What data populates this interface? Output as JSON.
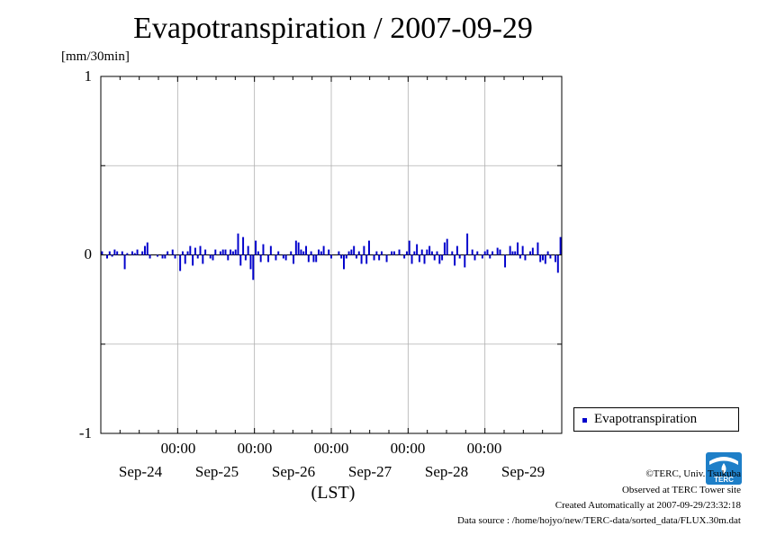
{
  "chart_data": {
    "type": "bar",
    "title": "Evapotranspiration / 2007-09-29",
    "ylabel": "[mm/30min]",
    "xlabel": "(LST)",
    "ylim": [
      -1,
      1
    ],
    "yticks": [
      "1",
      "0",
      "-1"
    ],
    "ytick_values": [
      1,
      0,
      -1
    ],
    "xticks_time": [
      "00:00",
      "00:00",
      "00:00",
      "00:00",
      "00:00"
    ],
    "xticks_date": [
      "Sep-24",
      "Sep-25",
      "Sep-26",
      "Sep-27",
      "Sep-28",
      "Sep-29"
    ],
    "days": 6,
    "grid": true,
    "legend_position": "bottom-right",
    "series": [
      {
        "name": "Evapotranspiration",
        "color": "#0000cc",
        "values": [
          0.02,
          0.0,
          -0.02,
          0.02,
          -0.01,
          0.03,
          0.02,
          0.0,
          0.02,
          -0.08,
          0.01,
          0.0,
          0.02,
          0.01,
          0.03,
          0.0,
          0.02,
          0.05,
          0.07,
          -0.02,
          0.0,
          0.0,
          -0.01,
          0.0,
          -0.02,
          -0.02,
          0.02,
          0.0,
          0.03,
          -0.02,
          0.0,
          -0.09,
          0.02,
          -0.05,
          0.02,
          0.05,
          -0.06,
          0.04,
          -0.02,
          0.05,
          -0.05,
          0.03,
          0.0,
          -0.02,
          -0.03,
          0.03,
          0.0,
          0.02,
          0.03,
          0.03,
          -0.03,
          0.03,
          0.02,
          0.03,
          0.12,
          -0.06,
          0.1,
          -0.03,
          0.05,
          -0.08,
          -0.14,
          0.08,
          0.02,
          -0.04,
          0.06,
          0.0,
          -0.04,
          0.05,
          0.0,
          -0.03,
          0.02,
          0.0,
          -0.02,
          -0.03,
          0.0,
          0.02,
          -0.05,
          0.08,
          0.07,
          0.03,
          0.02,
          0.05,
          -0.04,
          0.02,
          -0.04,
          -0.04,
          0.03,
          0.02,
          0.05,
          0.0,
          0.03,
          -0.02,
          0.0,
          0.0,
          0.02,
          -0.02,
          -0.08,
          -0.02,
          0.02,
          0.03,
          0.05,
          -0.02,
          0.02,
          -0.05,
          0.05,
          -0.05,
          0.08,
          0.0,
          -0.03,
          0.02,
          -0.03,
          0.02,
          0.0,
          -0.04,
          0.0,
          0.02,
          0.02,
          0.0,
          0.03,
          0.0,
          -0.02,
          0.02,
          0.08,
          -0.05,
          0.02,
          0.06,
          -0.04,
          0.03,
          -0.05,
          0.03,
          0.05,
          0.02,
          -0.03,
          0.02,
          -0.05,
          -0.03,
          0.07,
          0.09,
          0.0,
          0.02,
          -0.06,
          0.05,
          -0.02,
          0.0,
          -0.07,
          0.12,
          0.0,
          0.03,
          -0.03,
          0.02,
          0.0,
          -0.02,
          0.02,
          0.03,
          -0.02,
          0.02,
          0.0,
          0.04,
          0.03,
          0.0,
          -0.07,
          0.0,
          0.05,
          0.02,
          0.02,
          0.07,
          -0.02,
          0.05,
          -0.03,
          0.0,
          0.02,
          0.04,
          0.0,
          0.07,
          -0.04,
          -0.03,
          -0.05,
          0.02,
          -0.02,
          0.0,
          -0.04,
          -0.1,
          0.1
        ]
      }
    ]
  },
  "footer": {
    "copyright": "©TERC, Univ. Tsukuba",
    "site": "Observed at TERC Tower site",
    "created": "Created Automatically at 2007-09-29/23:32:18",
    "source": "Data source : /home/hojyo/new/TERC-data/sorted_data/FLUX.30m.dat"
  },
  "logo": {
    "text": "TERC",
    "color": "#1e7fc8"
  }
}
